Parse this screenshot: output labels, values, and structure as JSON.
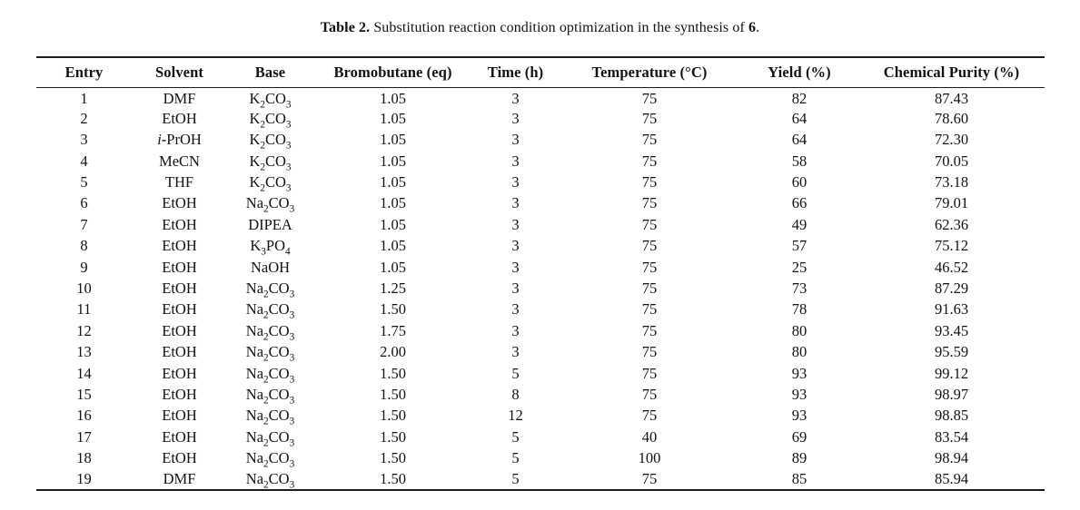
{
  "title": {
    "label": "Table 2.",
    "text": "Substitution reaction condition optimization in the synthesis of",
    "compound": "6",
    "suffix": "."
  },
  "colors": {
    "background": "#ffffff",
    "text": "#121212",
    "rule": "#1c1c1c"
  },
  "table": {
    "columns": [
      {
        "key": "entry",
        "label": "Entry"
      },
      {
        "key": "solvent",
        "label": "Solvent"
      },
      {
        "key": "base",
        "label": "Base"
      },
      {
        "key": "bromobutane",
        "label": "Bromobutane (eq)"
      },
      {
        "key": "time",
        "label": "Time (h)"
      },
      {
        "key": "temperature",
        "label": "Temperature (°C)"
      },
      {
        "key": "yield",
        "label": "Yield (%)"
      },
      {
        "key": "purity",
        "label": "Chemical Purity (%)"
      }
    ],
    "chem_format_columns": [
      "solvent",
      "base"
    ],
    "rows": [
      [
        "1",
        "DMF",
        "K2CO3",
        "1.05",
        "3",
        "75",
        "82",
        "87.43"
      ],
      [
        "2",
        "EtOH",
        "K2CO3",
        "1.05",
        "3",
        "75",
        "64",
        "78.60"
      ],
      [
        "3",
        "i-PrOH",
        "K2CO3",
        "1.05",
        "3",
        "75",
        "64",
        "72.30"
      ],
      [
        "4",
        "MeCN",
        "K2CO3",
        "1.05",
        "3",
        "75",
        "58",
        "70.05"
      ],
      [
        "5",
        "THF",
        "K2CO3",
        "1.05",
        "3",
        "75",
        "60",
        "73.18"
      ],
      [
        "6",
        "EtOH",
        "Na2CO3",
        "1.05",
        "3",
        "75",
        "66",
        "79.01"
      ],
      [
        "7",
        "EtOH",
        "DIPEA",
        "1.05",
        "3",
        "75",
        "49",
        "62.36"
      ],
      [
        "8",
        "EtOH",
        "K3PO4",
        "1.05",
        "3",
        "75",
        "57",
        "75.12"
      ],
      [
        "9",
        "EtOH",
        "NaOH",
        "1.05",
        "3",
        "75",
        "25",
        "46.52"
      ],
      [
        "10",
        "EtOH",
        "Na2CO3",
        "1.25",
        "3",
        "75",
        "73",
        "87.29"
      ],
      [
        "11",
        "EtOH",
        "Na2CO3",
        "1.50",
        "3",
        "75",
        "78",
        "91.63"
      ],
      [
        "12",
        "EtOH",
        "Na2CO3",
        "1.75",
        "3",
        "75",
        "80",
        "93.45"
      ],
      [
        "13",
        "EtOH",
        "Na2CO3",
        "2.00",
        "3",
        "75",
        "80",
        "95.59"
      ],
      [
        "14",
        "EtOH",
        "Na2CO3",
        "1.50",
        "5",
        "75",
        "93",
        "99.12"
      ],
      [
        "15",
        "EtOH",
        "Na2CO3",
        "1.50",
        "8",
        "75",
        "93",
        "98.97"
      ],
      [
        "16",
        "EtOH",
        "Na2CO3",
        "1.50",
        "12",
        "75",
        "93",
        "98.85"
      ],
      [
        "17",
        "EtOH",
        "Na2CO3",
        "1.50",
        "5",
        "40",
        "69",
        "83.54"
      ],
      [
        "18",
        "EtOH",
        "Na2CO3",
        "1.50",
        "5",
        "100",
        "89",
        "98.94"
      ],
      [
        "19",
        "DMF",
        "Na2CO3",
        "1.50",
        "5",
        "75",
        "85",
        "85.94"
      ]
    ]
  }
}
